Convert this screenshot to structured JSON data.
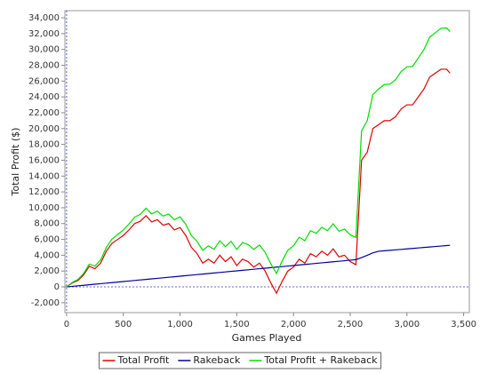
{
  "chart_data": {
    "type": "line",
    "xlabel": "Games Played",
    "ylabel": "Total Profit ($)",
    "x": [
      0,
      50,
      100,
      150,
      200,
      250,
      300,
      350,
      400,
      450,
      500,
      550,
      600,
      650,
      700,
      750,
      800,
      850,
      900,
      950,
      1000,
      1050,
      1100,
      1150,
      1200,
      1250,
      1300,
      1350,
      1400,
      1450,
      1500,
      1550,
      1600,
      1650,
      1700,
      1750,
      1800,
      1850,
      1900,
      1950,
      2000,
      2050,
      2100,
      2150,
      2200,
      2250,
      2300,
      2350,
      2400,
      2450,
      2500,
      2550,
      2600,
      2650,
      2700,
      2750,
      2800,
      2850,
      2900,
      2950,
      3000,
      3050,
      3100,
      3150,
      3200,
      3250,
      3300,
      3350,
      3380
    ],
    "series": [
      {
        "name": "Total Profit",
        "color": "#e00000",
        "values": [
          0,
          500,
          800,
          1500,
          2600,
          2300,
          3000,
          4500,
          5500,
          6000,
          6500,
          7200,
          8000,
          8300,
          9000,
          8200,
          8500,
          7800,
          8000,
          7200,
          7500,
          6500,
          5000,
          4200,
          3000,
          3500,
          3000,
          4000,
          3200,
          3800,
          2700,
          3500,
          3200,
          2500,
          3000,
          2000,
          500,
          -800,
          700,
          2000,
          2500,
          3500,
          3000,
          4200,
          3800,
          4500,
          4000,
          4800,
          3800,
          4000,
          3200,
          2800,
          16000,
          17000,
          20000,
          20500,
          21000,
          21000,
          21500,
          22500,
          23000,
          23000,
          24000,
          25000,
          26500,
          27000,
          27500,
          27500,
          27000
        ]
      },
      {
        "name": "Rakeback",
        "color": "#000099",
        "values": [
          0,
          68,
          135,
          203,
          270,
          338,
          405,
          473,
          540,
          608,
          675,
          743,
          810,
          878,
          945,
          1013,
          1080,
          1148,
          1215,
          1283,
          1350,
          1418,
          1485,
          1553,
          1620,
          1688,
          1755,
          1823,
          1890,
          1958,
          2025,
          2093,
          2160,
          2228,
          2295,
          2363,
          2430,
          2498,
          2565,
          2633,
          2700,
          2768,
          2835,
          2903,
          2970,
          3038,
          3105,
          3173,
          3240,
          3308,
          3375,
          3443,
          3700,
          4000,
          4300,
          4500,
          4560,
          4620,
          4680,
          4740,
          4800,
          4860,
          4920,
          4980,
          5040,
          5100,
          5160,
          5220,
          5260
        ]
      },
      {
        "name": "Total Profit + Rakeback",
        "color": "#00dd00",
        "values": [
          0,
          568,
          935,
          1703,
          2870,
          2638,
          3405,
          4973,
          6040,
          6608,
          7175,
          7943,
          8810,
          9178,
          9945,
          9213,
          9580,
          8948,
          9215,
          8483,
          8850,
          7918,
          6485,
          5753,
          4620,
          5188,
          4755,
          5823,
          5090,
          5758,
          4725,
          5593,
          5360,
          4728,
          5295,
          4363,
          2930,
          1698,
          3265,
          4633,
          5200,
          6268,
          5835,
          7103,
          6770,
          7538,
          7105,
          7973,
          7040,
          7308,
          6575,
          6243,
          19700,
          21000,
          24300,
          25000,
          25560,
          25620,
          26180,
          27240,
          27800,
          27860,
          28920,
          29980,
          31540,
          32100,
          32660,
          32720,
          32260
        ]
      }
    ],
    "xlim": [
      -15,
      3550
    ],
    "xticks": [
      0,
      500,
      {
        "value": 1000,
        "label": "1,000"
      },
      {
        "value": 1500,
        "label": "1,500"
      },
      {
        "value": 2000,
        "label": "2,000"
      },
      {
        "value": 2500,
        "label": "2,500"
      },
      {
        "value": 3000,
        "label": "3,000"
      },
      {
        "value": 3500,
        "label": "3,500"
      }
    ],
    "ylim": [
      -3250,
      34900
    ],
    "yticks": [
      {
        "value": -2000,
        "label": "-2,000"
      },
      0,
      {
        "value": 2000,
        "label": "2,000"
      },
      {
        "value": 4000,
        "label": "4,000"
      },
      {
        "value": 6000,
        "label": "6,000"
      },
      {
        "value": 8000,
        "label": "8,000"
      },
      {
        "value": 10000,
        "label": "10,000"
      },
      {
        "value": 12000,
        "label": "12,000"
      },
      {
        "value": 14000,
        "label": "14,000"
      },
      {
        "value": 16000,
        "label": "16,000"
      },
      {
        "value": 18000,
        "label": "18,000"
      },
      {
        "value": 20000,
        "label": "20,000"
      },
      {
        "value": 22000,
        "label": "22,000"
      },
      {
        "value": 24000,
        "label": "24,000"
      },
      {
        "value": 26000,
        "label": "26,000"
      },
      {
        "value": 28000,
        "label": "28,000"
      },
      {
        "value": 30000,
        "label": "30,000"
      },
      {
        "value": 32000,
        "label": "32,000"
      },
      {
        "value": 34000,
        "label": "34,000"
      }
    ],
    "grid": false,
    "legend": "bottom"
  }
}
